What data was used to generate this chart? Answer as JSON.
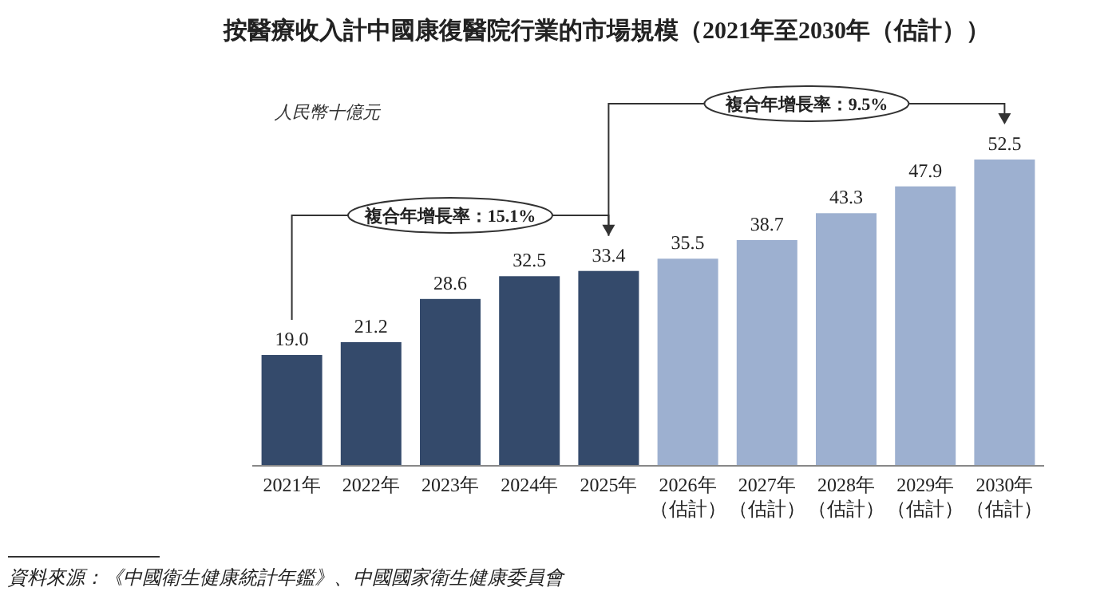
{
  "chart_data": {
    "type": "bar",
    "title": "按醫療收入計中國康復醫院行業的市場規模（2021年至2030年（估計））",
    "categories": [
      "2021年",
      "2022年",
      "2023年",
      "2024年",
      "2025年",
      "2026年（估計）",
      "2027年（估計）",
      "2028年（估計）",
      "2029年（估計）",
      "2030年（估計）"
    ],
    "values": [
      19.0,
      21.2,
      28.6,
      32.5,
      33.4,
      35.5,
      38.7,
      43.3,
      47.9,
      52.5
    ],
    "colors": [
      "#344a6b",
      "#344a6b",
      "#344a6b",
      "#344a6b",
      "#344a6b",
      "#9db0d0",
      "#9db0d0",
      "#9db0d0",
      "#9db0d0",
      "#9db0d0"
    ],
    "value_labels": [
      "19.0",
      "21.2",
      "28.6",
      "32.5",
      "33.4",
      "35.5",
      "38.7",
      "43.3",
      "47.9",
      "52.5"
    ],
    "annotations": [
      "人民幣十億元",
      "複合年增長率：15.1%",
      "複合年增長率：9.5%",
      "資料來源：《中國衛生健康統計年鑑》、中國國家衛生健康委員會"
    ]
  }
}
